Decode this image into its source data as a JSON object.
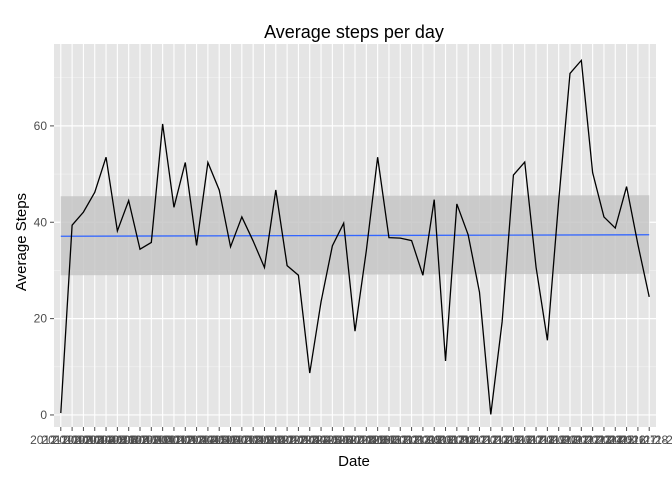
{
  "chart_data": {
    "type": "line",
    "title": "Average steps per day",
    "xlabel": "Date",
    "ylabel": "Average Steps",
    "ylim": [
      -2.5,
      77
    ],
    "yticks": [
      0,
      20,
      40,
      60
    ],
    "grid": true,
    "colors": {
      "panel": "#e5e5e5",
      "grid": "#ffffff",
      "line": "#000000",
      "smooth": "#3366ff",
      "band": "#c6c6c6"
    },
    "x": [
      "2012-10-02",
      "2012-10-03",
      "2012-10-04",
      "2012-10-05",
      "2012-10-06",
      "2012-10-07",
      "2012-10-09",
      "2012-10-10",
      "2012-10-11",
      "2012-10-12",
      "2012-10-13",
      "2012-10-14",
      "2012-10-15",
      "2012-10-16",
      "2012-10-17",
      "2012-10-18",
      "2012-10-19",
      "2012-10-20",
      "2012-10-21",
      "2012-10-22",
      "2012-10-23",
      "2012-10-24",
      "2012-10-25",
      "2012-10-26",
      "2012-10-27",
      "2012-10-28",
      "2012-10-29",
      "2012-10-30",
      "2012-10-31",
      "2012-11-02",
      "2012-11-03",
      "2012-11-05",
      "2012-11-06",
      "2012-11-07",
      "2012-11-08",
      "2012-11-11",
      "2012-11-12",
      "2012-11-13",
      "2012-11-15",
      "2012-11-16",
      "2012-11-17",
      "2012-11-18",
      "2012-11-19",
      "2012-11-20",
      "2012-11-21",
      "2012-11-22",
      "2012-11-23",
      "2012-11-24",
      "2012-11-25",
      "2012-11-26",
      "2012-11-27",
      "2012-11-28",
      "2012-11-29"
    ],
    "series": [
      {
        "values": [
          0.4,
          39.4,
          42.1,
          46.2,
          53.5,
          38.2,
          44.5,
          34.4,
          35.8,
          60.4,
          43.1,
          52.4,
          35.2,
          52.4,
          46.7,
          34.9,
          41.1,
          36.1,
          30.6,
          46.7,
          31.0,
          29.0,
          8.7,
          23.5,
          35.1,
          39.8,
          17.4,
          34.1,
          53.5,
          36.8,
          36.7,
          36.2,
          29.0,
          44.7,
          11.2,
          43.8,
          37.4,
          25.5,
          0.1,
          19.3,
          49.8,
          52.5,
          30.7,
          15.5,
          44.4,
          70.9,
          73.6,
          50.3,
          41.1,
          38.8,
          47.4,
          35.4,
          24.5
        ]
      }
    ],
    "smooth": {
      "start": 37.1,
      "end": 37.4,
      "band_start": [
        29.0,
        45.4
      ],
      "band_end": [
        29.3,
        45.6
      ]
    }
  }
}
